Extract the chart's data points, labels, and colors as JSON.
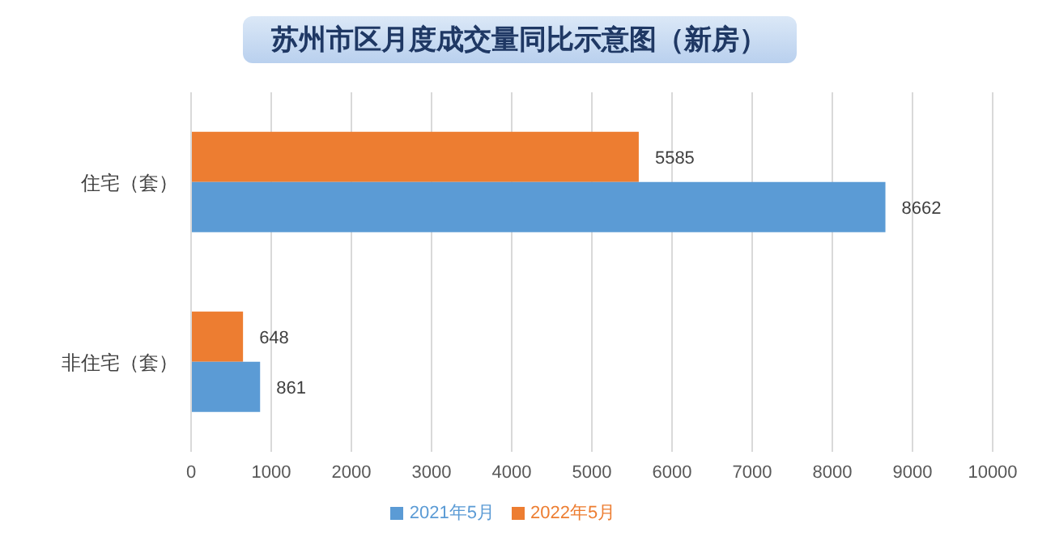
{
  "chart_data": {
    "type": "bar",
    "orientation": "horizontal",
    "title": "苏州市区月度成交量同比示意图（新房）",
    "categories": [
      "住宅（套）",
      "非住宅（套）"
    ],
    "series": [
      {
        "name": "2022年5月",
        "color": "#ed7d31",
        "values": [
          5585,
          648
        ]
      },
      {
        "name": "2021年5月",
        "color": "#5b9bd5",
        "values": [
          8662,
          861
        ]
      }
    ],
    "xlim": [
      0,
      10000
    ],
    "xticks": [
      0,
      1000,
      2000,
      3000,
      4000,
      5000,
      6000,
      7000,
      8000,
      9000,
      10000
    ],
    "grid": "x",
    "legend": "bottom",
    "data_labels": true
  }
}
